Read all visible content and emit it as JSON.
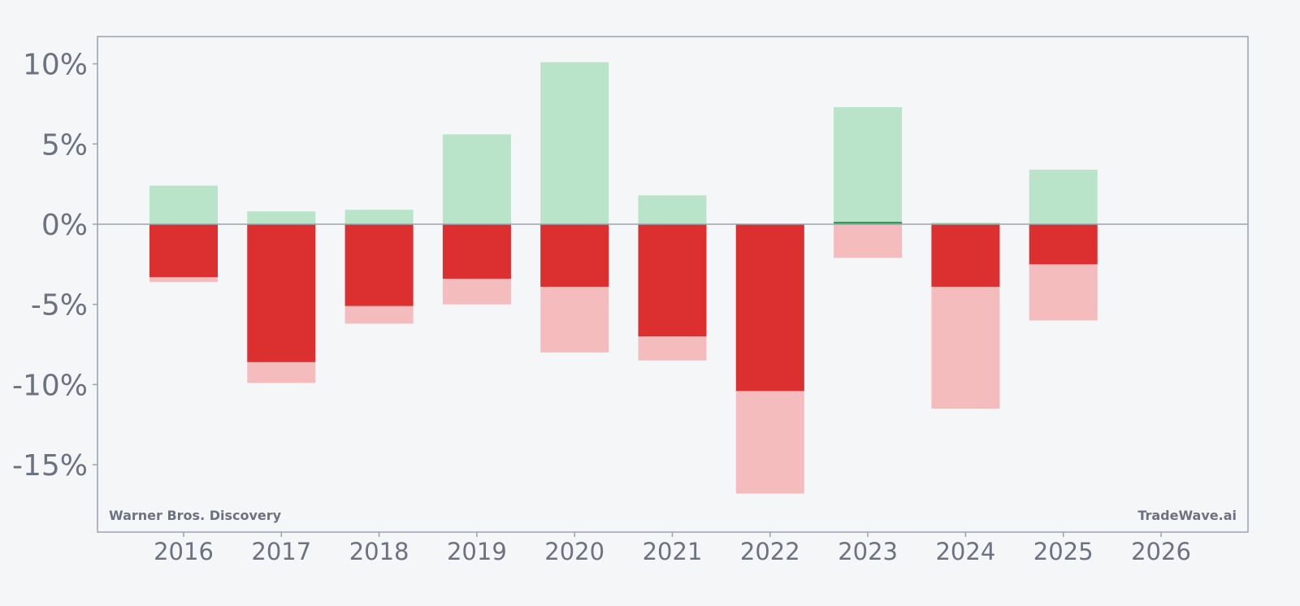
{
  "chart_data": {
    "type": "bar",
    "categories": [
      "2016",
      "2017",
      "2018",
      "2019",
      "2020",
      "2021",
      "2022",
      "2023",
      "2024",
      "2025"
    ],
    "x_ticks": [
      "2016",
      "2017",
      "2018",
      "2019",
      "2020",
      "2021",
      "2022",
      "2023",
      "2024",
      "2025",
      "2026"
    ],
    "y_ticks": [
      "10%",
      "5%",
      "0%",
      "-5%",
      "-10%",
      "-15%"
    ],
    "ylim": [
      -19.2,
      11.7
    ],
    "series": [
      {
        "role": "upper_range",
        "values": [
          2.4,
          0.8,
          0.9,
          5.6,
          10.1,
          1.8,
          0.0,
          7.3,
          0.1,
          3.4
        ]
      },
      {
        "role": "close_positive",
        "values": [
          0.0,
          0.0,
          0.0,
          0.0,
          0.0,
          0.0,
          0.0,
          0.15,
          0.0,
          0.0
        ]
      },
      {
        "role": "close_negative",
        "values": [
          -3.3,
          -8.6,
          -5.1,
          -3.4,
          -3.9,
          -7.0,
          -10.4,
          0.0,
          -3.9,
          -2.5
        ]
      },
      {
        "role": "lower_range",
        "values": [
          -3.6,
          -9.9,
          -6.2,
          -5.0,
          -8.0,
          -8.5,
          -16.8,
          -2.1,
          -11.5,
          -6.0
        ]
      }
    ],
    "colors": {
      "upper_range": "#b9e4c9",
      "close_positive": "#2e9e55",
      "close_negative": "#dc3030",
      "lower_range": "#f4bcbc",
      "axis": "#9ca3af",
      "text": "#6b7280"
    },
    "grid": false,
    "title": "",
    "xlabel": "",
    "ylabel": ""
  },
  "watermark": {
    "left": "Warner Bros. Discovery",
    "right": "TradeWave.ai"
  }
}
